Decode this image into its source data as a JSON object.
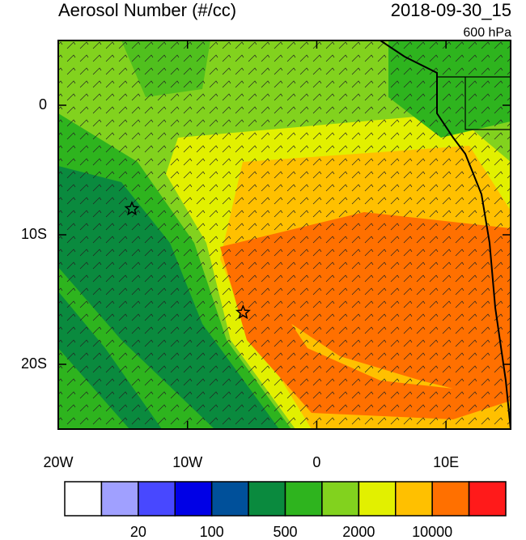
{
  "chart_data": {
    "type": "map",
    "title": "Aerosol Number (#/cc)",
    "date": "2018-09-30_15",
    "level": "600 hPa",
    "xlim": [
      -20,
      15
    ],
    "ylim": [
      -25,
      5
    ],
    "xticks": [
      {
        "value": -20,
        "label": "20W"
      },
      {
        "value": -10,
        "label": "10W"
      },
      0,
      {
        "value": 10,
        "label": "10E"
      }
    ],
    "yticks": [
      0,
      {
        "value": -10,
        "label": "10S"
      },
      {
        "value": -20,
        "label": "20S"
      }
    ],
    "stars": {
      "x": [
        -14.3,
        -5.7
      ],
      "y": [
        -8,
        -16
      ]
    },
    "colorbar_colors": [
      "#ffffff",
      "#a0a0ff",
      "#4848ff",
      "#0000e6",
      "#00509a",
      "#0a8a3e",
      "#2eb41e",
      "#82d21e",
      "#e2f000",
      "#ffc000",
      "#ff7000",
      "#ff1a1a"
    ],
    "colorbar_ticks": [
      20,
      100,
      500,
      2000,
      10000
    ]
  }
}
